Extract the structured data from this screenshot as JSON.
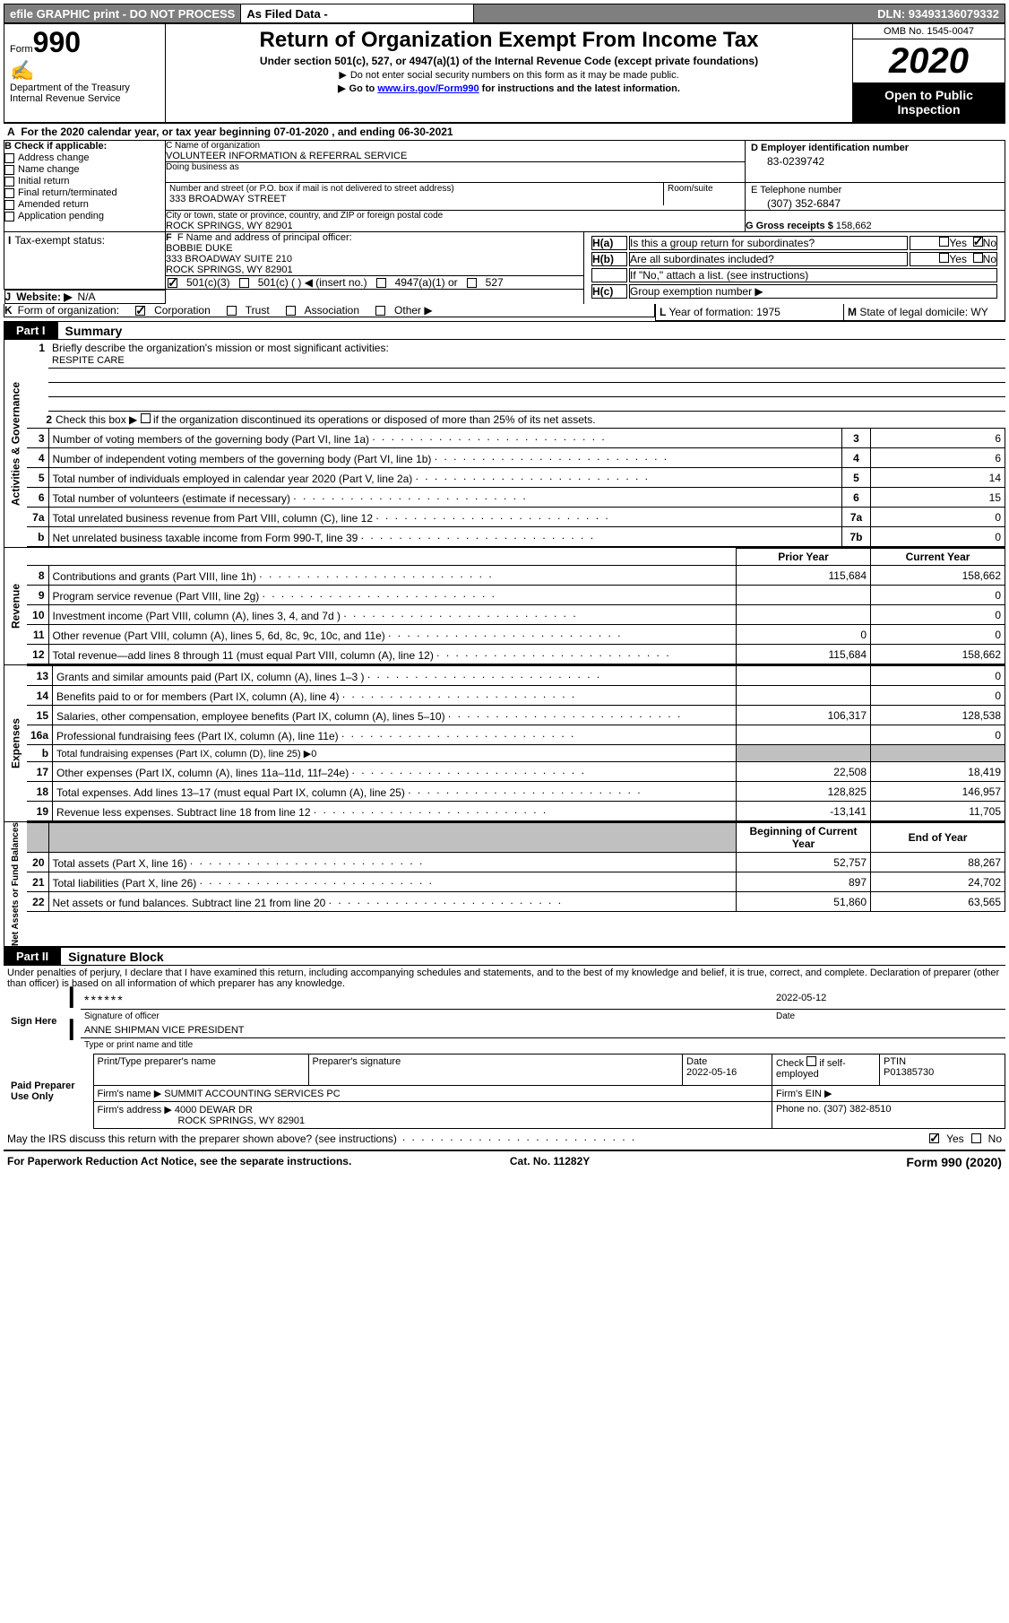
{
  "banner": {
    "efile": "efile GRAPHIC print - DO NOT PROCESS",
    "asfiled_label": "As Filed Data -",
    "asfiled_value": "",
    "dln_label": "DLN:",
    "dln": "93493136079332"
  },
  "header": {
    "form_word": "Form",
    "form_no": "990",
    "dept": "Department of the Treasury",
    "irs": "Internal Revenue Service",
    "title": "Return of Organization Exempt From Income Tax",
    "subtitle": "Under section 501(c), 527, or 4947(a)(1) of the Internal Revenue Code (except private foundations)",
    "note1": "Do not enter social security numbers on this form as it may be made public.",
    "note2_pre": "Go to ",
    "note2_link": "www.irs.gov/Form990",
    "note2_post": " for instructions and the latest information.",
    "omb": "OMB No. 1545-0047",
    "year": "2020",
    "open_public": "Open to Public Inspection"
  },
  "line_a": {
    "label": "A",
    "text_pre": "For the 2020 calendar year, or tax year beginning ",
    "begin": "07-01-2020",
    "text_mid": " , and ending ",
    "end": "06-30-2021"
  },
  "sec_b": {
    "title": "B Check if applicable:",
    "items": [
      "Address change",
      "Name change",
      "Initial return",
      "Final return/terminated",
      "Amended return",
      "Application pending"
    ]
  },
  "sec_c": {
    "name_label": "C Name of organization",
    "name": "VOLUNTEER INFORMATION & REFERRAL SERVICE",
    "dba_label": "Doing business as",
    "dba": "",
    "street_label": "Number and street (or P.O. box if mail is not delivered to street address)",
    "room_label": "Room/suite",
    "street": "333 BROADWAY STREET",
    "city_label": "City or town, state or province, country, and ZIP or foreign postal code",
    "city": "ROCK SPRINGS, WY  82901"
  },
  "sec_d": {
    "label": "D Employer identification number",
    "value": "83-0239742"
  },
  "sec_e": {
    "label": "E Telephone number",
    "value": "(307) 352-6847"
  },
  "sec_g": {
    "label": "G Gross receipts $",
    "value": "158,662"
  },
  "sec_f": {
    "label": "F  Name and address of principal officer:",
    "name": "BOBBIE DUKE",
    "street": "333 BROADWAY SUITE 210",
    "city": "ROCK SPRINGS, WY  82901"
  },
  "sec_h": {
    "a_label": "H(a)",
    "a_text": "Is this a group return for subordinates?",
    "a_yes": "Yes",
    "a_no": "No",
    "b_label": "H(b)",
    "b_text": "Are all subordinates included?",
    "b_note": "If \"No,\" attach a list. (see instructions)",
    "c_label": "H(c)",
    "c_text": "Group exemption number ▶"
  },
  "sec_i": {
    "label": "I",
    "text": "Tax-exempt status:",
    "opts": [
      "501(c)(3)",
      "501(c) (   ) ◀ (insert no.)",
      "4947(a)(1) or",
      "527"
    ]
  },
  "sec_j": {
    "label": "J",
    "text": "Website: ▶",
    "value": "N/A"
  },
  "sec_k": {
    "label": "K",
    "text": "Form of organization:",
    "opts": [
      "Corporation",
      "Trust",
      "Association",
      "Other ▶"
    ]
  },
  "sec_l": {
    "label": "L",
    "text": "Year of formation:",
    "value": "1975"
  },
  "sec_m": {
    "label": "M",
    "text": "State of legal domicile:",
    "value": "WY"
  },
  "part1": {
    "tab": "Part I",
    "title": "Summary"
  },
  "activities": {
    "side": "Activities & Governance",
    "line1_label": "1",
    "line1_text": "Briefly describe the organization's mission or most significant activities:",
    "mission": "RESPITE CARE",
    "line2_label": "2",
    "line2_text": "Check this box ▶",
    "line2_post": "if the organization discontinued its operations or disposed of more than 25% of its net assets.",
    "rows": [
      {
        "n": "3",
        "desc": "Number of voting members of the governing body (Part VI, line 1a)",
        "num": "3",
        "val": "6"
      },
      {
        "n": "4",
        "desc": "Number of independent voting members of the governing body (Part VI, line 1b)",
        "num": "4",
        "val": "6"
      },
      {
        "n": "5",
        "desc": "Total number of individuals employed in calendar year 2020 (Part V, line 2a)",
        "num": "5",
        "val": "14"
      },
      {
        "n": "6",
        "desc": "Total number of volunteers (estimate if necessary)",
        "num": "6",
        "val": "15"
      },
      {
        "n": "7a",
        "desc": "Total unrelated business revenue from Part VIII, column (C), line 12",
        "num": "7a",
        "val": "0"
      },
      {
        "n": "b",
        "desc": "Net unrelated business taxable income from Form 990-T, line 39",
        "num": "7b",
        "val": "0"
      }
    ]
  },
  "revenue": {
    "side": "Revenue",
    "hdr_prior": "Prior Year",
    "hdr_current": "Current Year",
    "rows": [
      {
        "n": "8",
        "desc": "Contributions and grants (Part VIII, line 1h)",
        "p": "115,684",
        "c": "158,662"
      },
      {
        "n": "9",
        "desc": "Program service revenue (Part VIII, line 2g)",
        "p": "",
        "c": "0"
      },
      {
        "n": "10",
        "desc": "Investment income (Part VIII, column (A), lines 3, 4, and 7d )",
        "p": "",
        "c": "0"
      },
      {
        "n": "11",
        "desc": "Other revenue (Part VIII, column (A), lines 5, 6d, 8c, 9c, 10c, and 11e)",
        "p": "0",
        "c": "0"
      },
      {
        "n": "12",
        "desc": "Total revenue—add lines 8 through 11 (must equal Part VIII, column (A), line 12)",
        "p": "115,684",
        "c": "158,662"
      }
    ]
  },
  "expenses": {
    "side": "Expenses",
    "rows": [
      {
        "n": "13",
        "desc": "Grants and similar amounts paid (Part IX, column (A), lines 1–3 )",
        "p": "",
        "c": "0"
      },
      {
        "n": "14",
        "desc": "Benefits paid to or for members (Part IX, column (A), line 4)",
        "p": "",
        "c": "0"
      },
      {
        "n": "15",
        "desc": "Salaries, other compensation, employee benefits (Part IX, column (A), lines 5–10)",
        "p": "106,317",
        "c": "128,538"
      },
      {
        "n": "16a",
        "desc": "Professional fundraising fees (Part IX, column (A), line 11e)",
        "p": "",
        "c": "0"
      },
      {
        "n": "b",
        "desc": "Total fundraising expenses (Part IX, column (D), line 25) ▶0",
        "p": null,
        "c": null,
        "grey": true
      },
      {
        "n": "17",
        "desc": "Other expenses (Part IX, column (A), lines 11a–11d, 11f–24e)",
        "p": "22,508",
        "c": "18,419"
      },
      {
        "n": "18",
        "desc": "Total expenses. Add lines 13–17 (must equal Part IX, column (A), line 25)",
        "p": "128,825",
        "c": "146,957"
      },
      {
        "n": "19",
        "desc": "Revenue less expenses. Subtract line 18 from line 12",
        "p": "-13,141",
        "c": "11,705"
      }
    ]
  },
  "netassets": {
    "side": "Net Assets or Fund Balances",
    "hdr_begin": "Beginning of Current Year",
    "hdr_end": "End of Year",
    "rows": [
      {
        "n": "20",
        "desc": "Total assets (Part X, line 16)",
        "p": "52,757",
        "c": "88,267"
      },
      {
        "n": "21",
        "desc": "Total liabilities (Part X, line 26)",
        "p": "897",
        "c": "24,702"
      },
      {
        "n": "22",
        "desc": "Net assets or fund balances. Subtract line 21 from line 20",
        "p": "51,860",
        "c": "63,565"
      }
    ]
  },
  "part2": {
    "tab": "Part II",
    "title": "Signature Block"
  },
  "signature": {
    "perjury": "Under penalties of perjury, I declare that I have examined this return, including accompanying schedules and statements, and to the best of my knowledge and belief, it is true, correct, and complete. Declaration of preparer (other than officer) is based on all information of which preparer has any knowledge.",
    "sign_here": "Sign Here",
    "stars": "******",
    "sig_label": "Signature of officer",
    "date_label": "Date",
    "sig_date": "2022-05-12",
    "officer": "ANNE SHIPMAN VICE PRESIDENT",
    "officer_label": "Type or print name and title",
    "paid": "Paid Preparer Use Only",
    "prep_name_label": "Print/Type preparer's name",
    "prep_sig_label": "Preparer's signature",
    "prep_date_label": "Date",
    "prep_date": "2022-05-16",
    "check_if": "Check",
    "self_emp": "if self-employed",
    "ptin_label": "PTIN",
    "ptin": "P01385730",
    "firm_name_label": "Firm's name  ▶",
    "firm_name": "SUMMIT ACCOUNTING SERVICES PC",
    "firm_ein_label": "Firm's EIN ▶",
    "firm_addr_label": "Firm's address ▶",
    "firm_addr1": "4000 DEWAR DR",
    "firm_addr2": "ROCK SPRINGS, WY  82901",
    "phone_label": "Phone no.",
    "phone": "(307) 382-8510",
    "may_irs": "May the IRS discuss this return with the preparer shown above? (see instructions)",
    "yes": "Yes",
    "no": "No"
  },
  "footer": {
    "paperwork": "For Paperwork Reduction Act Notice, see the separate instructions.",
    "cat": "Cat. No. 11282Y",
    "form": "Form 990 (2020)"
  },
  "colors": {
    "banner_bg": "#7f7f7f",
    "black": "#000000",
    "grey_cell": "#c0c0c0",
    "link": "#0000ff"
  }
}
